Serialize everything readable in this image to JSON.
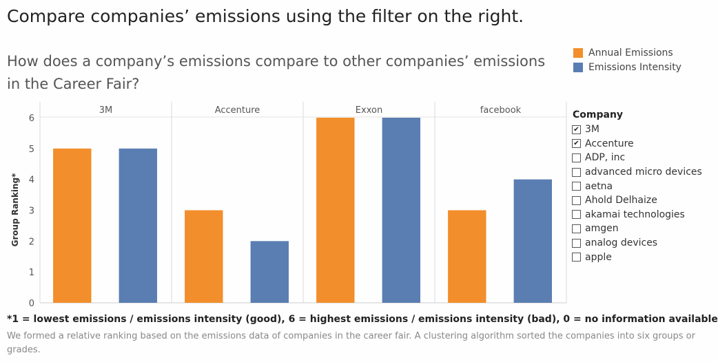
{
  "title": "Compare companies’ emissions using the filter on the right.",
  "subtitle": "How does a company’s emissions compare to other companies’ emissions in the Career Fair?",
  "legend": [
    {
      "label": "Annual Emissions",
      "color": "#F28E2B"
    },
    {
      "label": "Emissions Intensity",
      "color": "#5A7EB2"
    }
  ],
  "chart_data": {
    "type": "bar",
    "categories": [
      "3M",
      "Accenture",
      "Exxon",
      "facebook"
    ],
    "series": [
      {
        "name": "Annual Emissions",
        "color": "#F28E2B",
        "values": [
          5,
          3,
          6,
          3
        ]
      },
      {
        "name": "Emissions Intensity",
        "color": "#5A7EB2",
        "values": [
          5,
          2,
          6,
          4
        ]
      }
    ],
    "ylabel": "Group Ranking*",
    "yticks": [
      0,
      1,
      2,
      3,
      4,
      5,
      6
    ],
    "ylim": [
      0,
      6
    ],
    "legend_position": "top-right",
    "grid": false
  },
  "filter": {
    "title": "Company",
    "items": [
      {
        "label": "3M",
        "checked": true
      },
      {
        "label": "Accenture",
        "checked": true
      },
      {
        "label": "ADP, inc",
        "checked": false
      },
      {
        "label": "advanced micro devices",
        "checked": false
      },
      {
        "label": "aetna",
        "checked": false
      },
      {
        "label": "Ahold Delhaize",
        "checked": false
      },
      {
        "label": "akamai technologies",
        "checked": false
      },
      {
        "label": "amgen",
        "checked": false
      },
      {
        "label": "analog devices",
        "checked": false
      },
      {
        "label": "apple",
        "checked": false
      }
    ]
  },
  "footnote": "*1 = lowest emissions / emissions intensity (good), 6 = highest emissions / emissions intensity (bad), 0 = no information available",
  "description": "We formed a relative ranking based on the emissions data of companies in the career fair. A clustering algorithm  sorted the companies into six groups or grades."
}
